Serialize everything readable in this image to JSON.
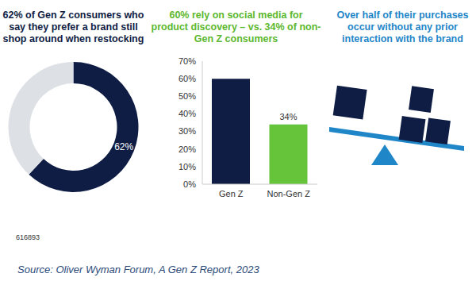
{
  "chart_data": [
    {
      "type": "pie",
      "title": "62% of Gen Z consumers who say they prefer a brand still shop around when restocking",
      "values": [
        62,
        38
      ],
      "value_labels": [
        "62%",
        null
      ],
      "colors": [
        "#0f1d45",
        "#dde0e4"
      ]
    },
    {
      "type": "bar",
      "title": "60% rely on social media for product discovery – vs. 34% of non-Gen Z consumers",
      "categories": [
        "Gen Z",
        "Non-Gen Z"
      ],
      "values": [
        60,
        34
      ],
      "value_labels": [
        null,
        "34%"
      ],
      "data_labels": true,
      "colors": [
        "#0f1d45",
        "#66c43a"
      ],
      "ylim": [
        0,
        70
      ],
      "yticks": [
        {
          "value": 0,
          "label": "0%"
        },
        {
          "value": 10,
          "label": "10%"
        },
        {
          "value": 20,
          "label": "20%"
        },
        {
          "value": 30,
          "label": "30%"
        },
        {
          "value": 40,
          "label": "40%"
        },
        {
          "value": 50,
          "label": "50%"
        },
        {
          "value": 60,
          "label": "60%"
        },
        {
          "value": 70,
          "label": "70%"
        }
      ]
    }
  ],
  "illustration": {
    "title": "Over half of their purchases occur without any prior interaction with the brand"
  },
  "footer": {
    "code": "616893",
    "source": "Source: Oliver Wyman Forum, A Gen Z Report, 2023"
  }
}
